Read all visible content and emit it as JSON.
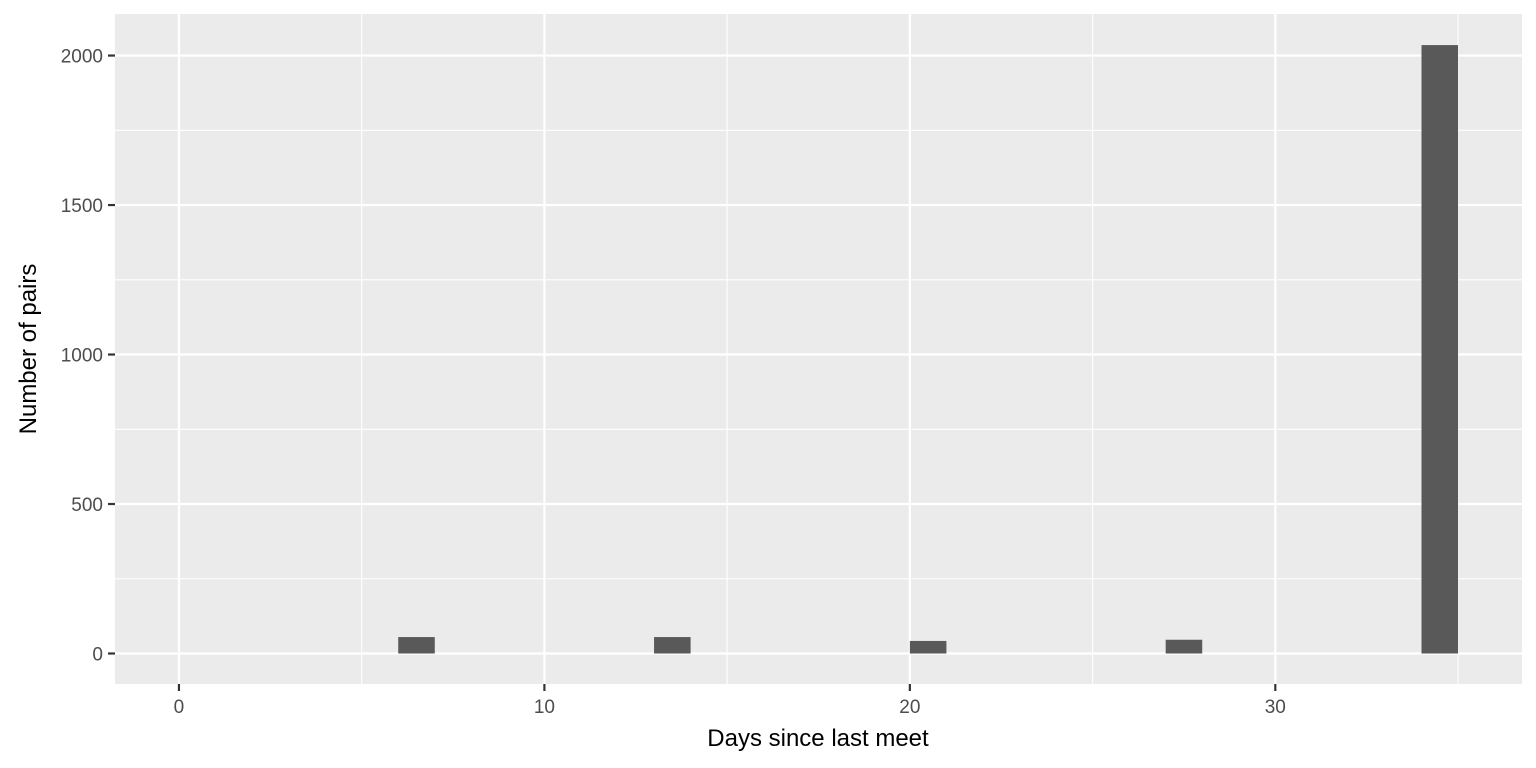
{
  "chart_data": {
    "type": "bar",
    "title": "",
    "xlabel": "Days since last meet",
    "ylabel": "Number of pairs",
    "x_ticks": [
      0,
      10,
      20,
      30
    ],
    "x_tick_labels": [
      "0",
      "10",
      "20",
      "30"
    ],
    "y_ticks": [
      0,
      500,
      1000,
      1500,
      2000
    ],
    "y_tick_labels": [
      "0",
      "500",
      "1000",
      "1500",
      "2000"
    ],
    "xlim": [
      -1.75,
      36.75
    ],
    "ylim": [
      -102,
      2139
    ],
    "bin_width": 1,
    "bars": [
      {
        "x": 6.5,
        "value": 55
      },
      {
        "x": 13.5,
        "value": 55
      },
      {
        "x": 20.5,
        "value": 42
      },
      {
        "x": 27.5,
        "value": 46
      },
      {
        "x": 34.5,
        "value": 2035
      }
    ],
    "grid": true,
    "legend": "none",
    "colors": {
      "bar": "#595959",
      "panel": "#ebebeb",
      "grid": "#ffffff"
    }
  }
}
